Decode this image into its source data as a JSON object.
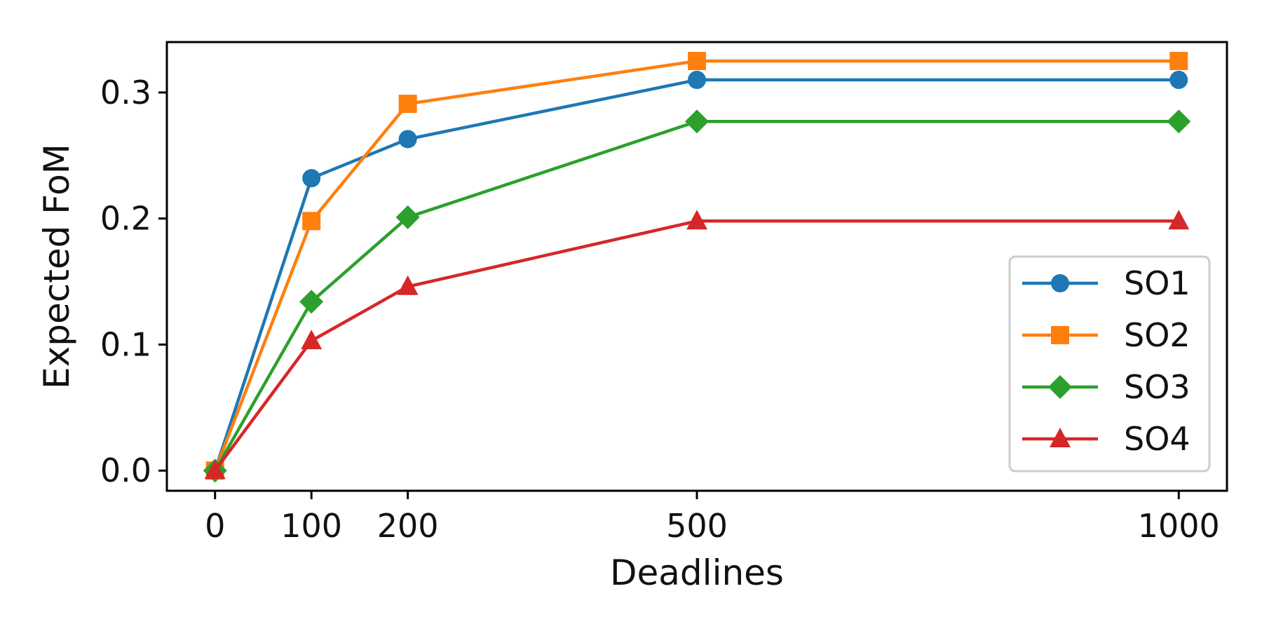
{
  "chart_data": {
    "type": "line",
    "title": "",
    "xlabel": "Deadlines",
    "ylabel": "Expected FoM",
    "x": [
      0,
      100,
      200,
      500,
      1000
    ],
    "x_ticks": [
      "0",
      "100",
      "200",
      "500",
      "1000"
    ],
    "y_ticks": [
      "0.0",
      "0.1",
      "0.2",
      "0.3"
    ],
    "xlim": [
      -50,
      1050
    ],
    "ylim": [
      -0.016,
      0.34
    ],
    "grid": false,
    "legend_position": "lower-right",
    "series": [
      {
        "name": "SO1",
        "marker": "circle",
        "color": "#1f77b4",
        "values": [
          0,
          0.232,
          0.263,
          0.31,
          0.31
        ]
      },
      {
        "name": "SO2",
        "marker": "square",
        "color": "#ff7f0e",
        "values": [
          0,
          0.198,
          0.291,
          0.325,
          0.325
        ]
      },
      {
        "name": "SO3",
        "marker": "diamond",
        "color": "#2ca02c",
        "values": [
          0,
          0.134,
          0.201,
          0.277,
          0.277
        ]
      },
      {
        "name": "SO4",
        "marker": "triangle",
        "color": "#d62728",
        "values": [
          0,
          0.103,
          0.146,
          0.198,
          0.198
        ]
      }
    ]
  }
}
